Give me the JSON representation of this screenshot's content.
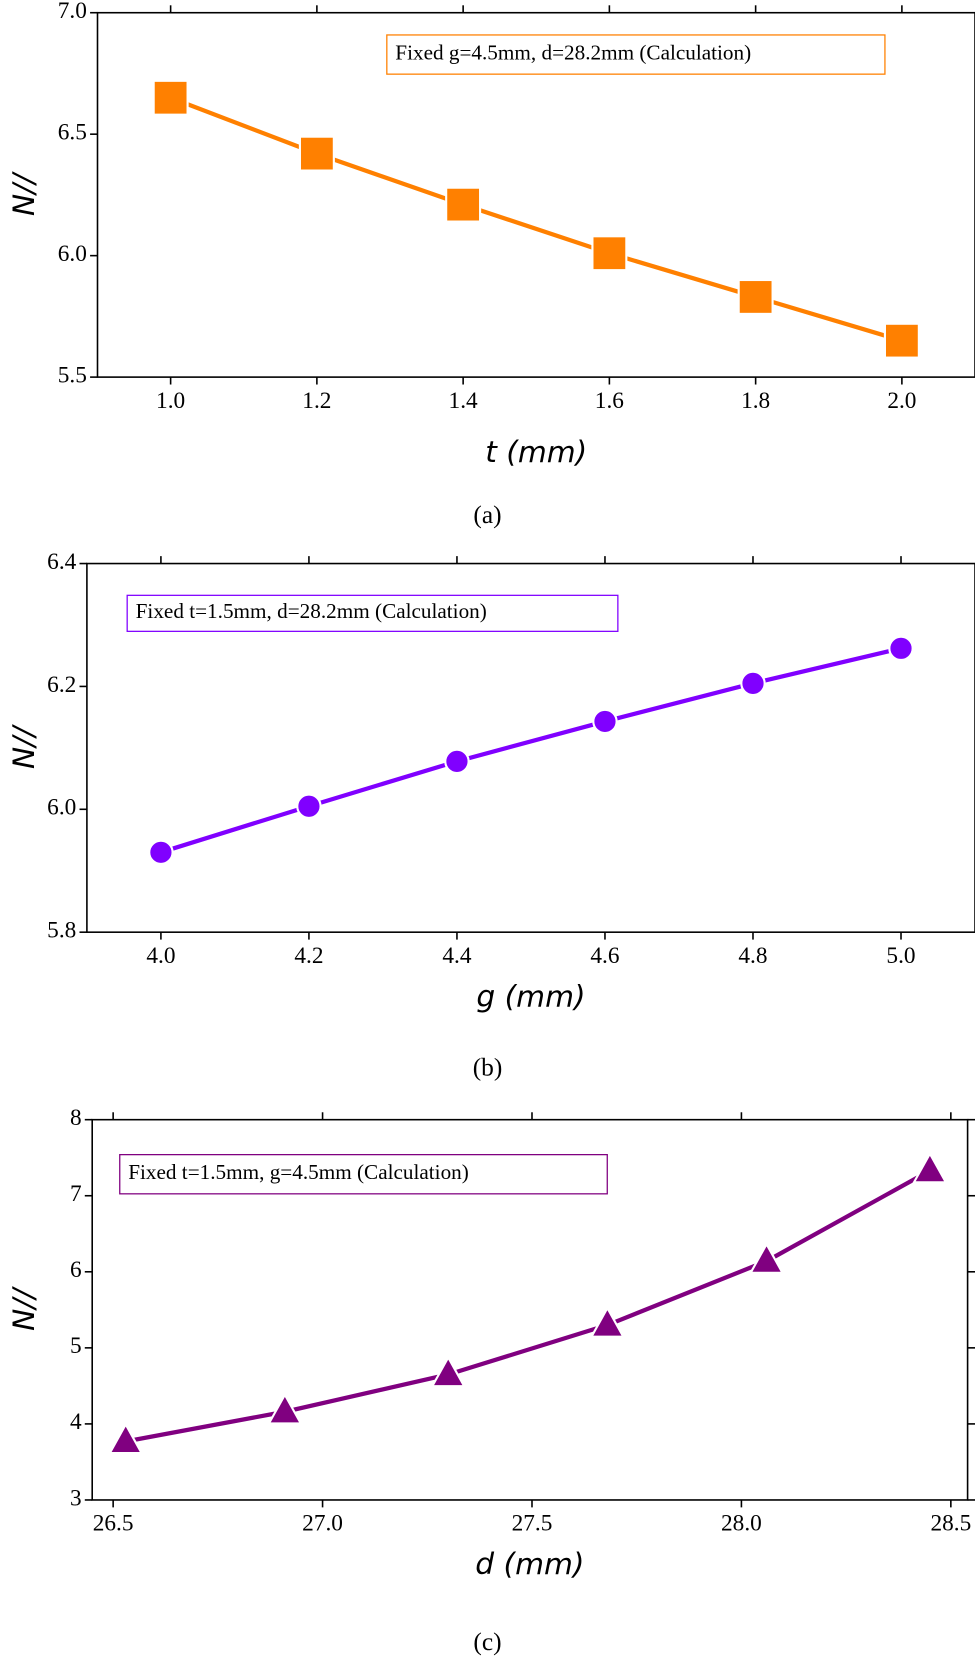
{
  "chart_data": [
    {
      "type": "line",
      "marker": "square",
      "color": "#ff8000",
      "x": [
        1.0,
        1.2,
        1.4,
        1.6,
        1.8,
        2.0
      ],
      "values": [
        6.65,
        6.42,
        6.21,
        6.01,
        5.83,
        5.65
      ],
      "xlim": [
        0.9,
        2.1
      ],
      "xticks": [
        {
          "value": 1,
          "label": "1.0"
        },
        1.2,
        1.4,
        1.6,
        1.8,
        {
          "value": 2,
          "label": "2.0"
        }
      ],
      "ylim": [
        5.5,
        7.0
      ],
      "yticks": [
        5.5,
        {
          "value": 6,
          "label": "6.0"
        },
        6.5,
        {
          "value": 7,
          "label": "7.0"
        }
      ],
      "x_label": "t (mm)",
      "y_label": "N//",
      "annotation": "Fixed  g=4.5mm, d=28.2mm  (Calculation)",
      "caption": "(a)"
    },
    {
      "type": "line",
      "marker": "circle",
      "color": "#8000ff",
      "x": [
        4.0,
        4.2,
        4.4,
        4.6,
        4.8,
        5.0
      ],
      "values": [
        5.93,
        6.005,
        6.078,
        6.143,
        6.205,
        6.262
      ],
      "xlim": [
        3.9,
        5.1
      ],
      "xticks": [
        {
          "value": 4,
          "label": "4.0"
        },
        4.2,
        4.4,
        4.6,
        4.8,
        {
          "value": 5,
          "label": "5.0"
        }
      ],
      "ylim": [
        5.8,
        6.4
      ],
      "yticks": [
        5.8,
        {
          "value": 6,
          "label": "6.0"
        },
        6.2,
        6.4
      ],
      "x_label": "g (mm)",
      "y_label": "N//",
      "annotation": "Fixed  t=1.5mm, d=28.2mm (Calculation)",
      "caption": "(b)"
    },
    {
      "type": "line",
      "marker": "triangle",
      "color": "#800080",
      "x": [
        26.53,
        26.91,
        27.3,
        27.68,
        28.06,
        28.45
      ],
      "values": [
        3.77,
        4.16,
        4.65,
        5.3,
        6.14,
        7.33
      ],
      "xlim": [
        26.45,
        28.54
      ],
      "xticks": [
        26.5,
        {
          "value": 27,
          "label": "27.0"
        },
        27.5,
        {
          "value": 28,
          "label": "28.0"
        },
        28.5
      ],
      "ylim": [
        3,
        8
      ],
      "yticks": [
        3,
        4,
        5,
        6,
        7,
        8
      ],
      "x_label": "d (mm)",
      "y_label": "N//",
      "annotation": "Fixed  t=1.5mm, g=4.5mm  (Calculation)",
      "caption": "(c)"
    }
  ]
}
